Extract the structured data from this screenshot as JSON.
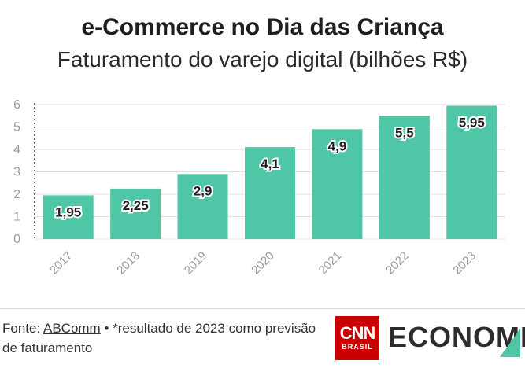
{
  "header": {
    "title": "e-Commerce no Dia das Criança",
    "subtitle": "Faturamento do varejo digital (bilhões R$)"
  },
  "chart_data": {
    "type": "bar",
    "title": "e-Commerce no Dia das Criança",
    "subtitle": "Faturamento do varejo digital (bilhões R$)",
    "categories": [
      "2017",
      "2018",
      "2019",
      "2020",
      "2021",
      "2022",
      "2023"
    ],
    "values": [
      1.95,
      2.25,
      2.9,
      4.1,
      4.9,
      5.5,
      5.95
    ],
    "value_labels": [
      "1,95",
      "2,25",
      "2,9",
      "4,1",
      "4,9",
      "5,5",
      "5,95"
    ],
    "y_ticks": [
      "0",
      "1",
      "2",
      "3",
      "4",
      "5",
      "6"
    ],
    "ylim": [
      0,
      6
    ],
    "grid": true,
    "bar_color": "#4fc6a6",
    "xlabel": "",
    "ylabel": ""
  },
  "footer": {
    "source_prefix": "Fonte: ",
    "source_name": "ABComm",
    "note": " • *resultado de 2023 como previsão de faturamento",
    "cnn_logo": "CNN",
    "cnn_sub": "BRASIL",
    "brand": "ECONOMIA",
    "brand_accent_color": "#4fc6a6",
    "cnn_color": "#cc0000"
  }
}
